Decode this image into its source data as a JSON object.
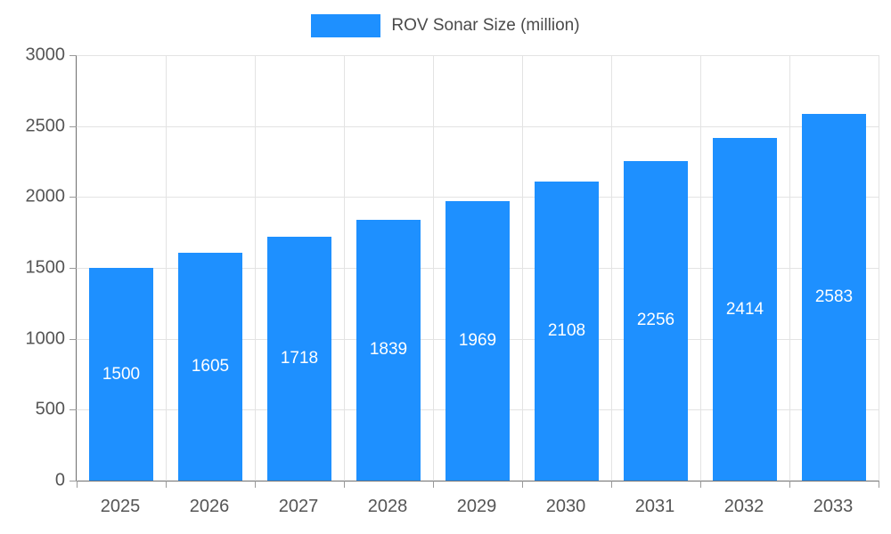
{
  "legend": {
    "label": "ROV Sonar Size (million)",
    "swatch_color": "#1e90ff"
  },
  "chart_data": {
    "type": "bar",
    "title": "",
    "categories": [
      "2025",
      "2026",
      "2027",
      "2028",
      "2029",
      "2030",
      "2031",
      "2032",
      "2033"
    ],
    "series": [
      {
        "name": "ROV Sonar Size (million)",
        "values": [
          1500,
          1605,
          1718,
          1839,
          1969,
          2108,
          2256,
          2414,
          2583
        ]
      }
    ],
    "value_labels": [
      "1500",
      "1605",
      "1718",
      "1839",
      "1969",
      "2108",
      "2256",
      "2414",
      "2583"
    ],
    "xlabel": "",
    "ylabel": "",
    "ylim": [
      0,
      3000
    ],
    "yticks": [
      0,
      500,
      1000,
      1500,
      2000,
      2500,
      3000
    ],
    "grid": true,
    "legend_position": "top-center",
    "bar_color": "#1e90ff",
    "value_label_color": "#ffffff",
    "axis_color": "#6e6e6e",
    "gridline_color": "#e3e3e3",
    "tick_label_color": "#555555"
  }
}
